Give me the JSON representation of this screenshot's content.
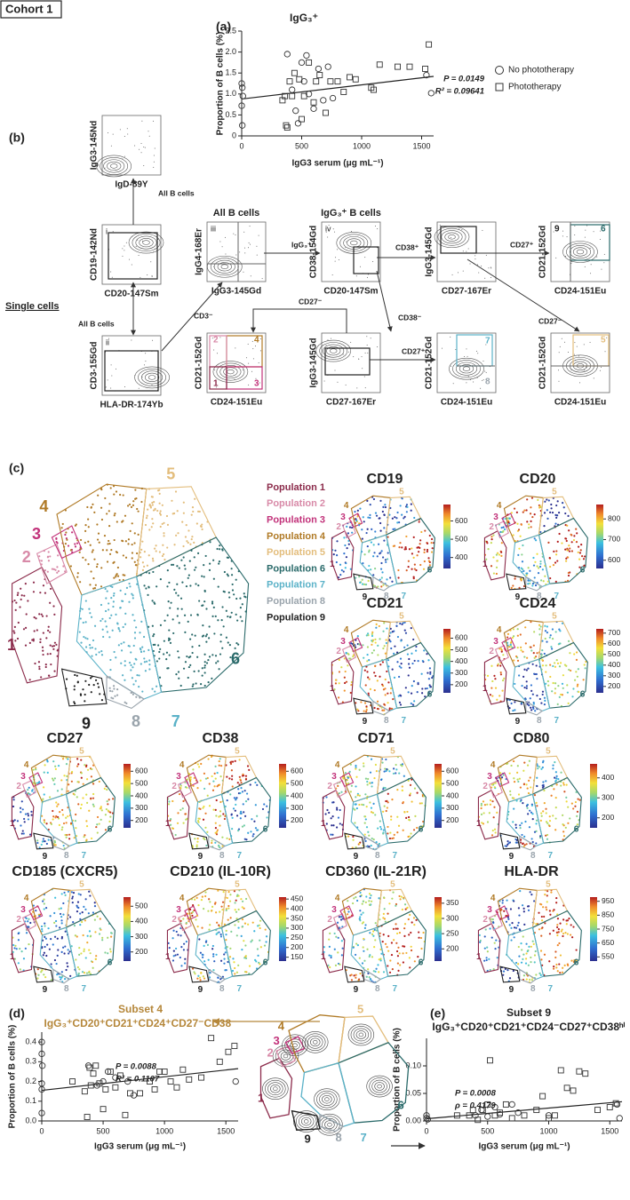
{
  "figure_label": "Cohort 1",
  "gates": [
    "1",
    "2",
    "3",
    "4",
    "5",
    "6",
    "7",
    "8",
    "9"
  ],
  "chart_data": [
    {
      "type": "scatter",
      "panel_label": "(a)",
      "title": "IgG₃⁺",
      "x_label": "IgG3 serum (μg mL⁻¹)",
      "y_label": "Proportion of B cells (%)",
      "xlim": [
        0,
        1600
      ],
      "xticks": [
        0,
        500,
        1000,
        1500
      ],
      "ylim": [
        0,
        2.5
      ],
      "yticks": [
        {
          "value": 0,
          "label": "0"
        },
        {
          "value": 0.5,
          "label": "0.5"
        },
        {
          "value": 1,
          "label": "1.0"
        },
        {
          "value": 1.5,
          "label": "1.5"
        },
        {
          "value": 2,
          "label": "2.0"
        },
        {
          "value": 2.5,
          "label": "2.5"
        }
      ],
      "annotations": [
        "P = 0.0149",
        "R² = 0.09641"
      ],
      "legend": "right",
      "series": [
        {
          "name": "No phototherapy",
          "marker": "circle",
          "color": "#333333",
          "x": [
            0,
            5,
            10,
            0,
            5,
            380,
            420,
            450,
            470,
            500,
            520,
            540,
            560,
            600,
            640,
            680,
            720,
            760,
            1580,
            1540
          ],
          "values": [
            1.25,
            1.15,
            0.95,
            0.72,
            0.25,
            1.95,
            1.1,
            0.6,
            0.3,
            1.75,
            1.3,
            1.92,
            1.0,
            0.65,
            1.6,
            0.85,
            1.65,
            0.9,
            1.02,
            1.45
          ]
        },
        {
          "name": "Phototherapy",
          "marker": "square",
          "color": "#333333",
          "x": [
            340,
            360,
            370,
            380,
            400,
            420,
            440,
            480,
            500,
            520,
            560,
            600,
            620,
            650,
            700,
            740,
            800,
            850,
            900,
            950,
            1080,
            1100,
            1150,
            1300,
            1400,
            1530,
            1560
          ],
          "values": [
            0.85,
            0.95,
            0.25,
            0.2,
            1.3,
            0.95,
            1.5,
            1.35,
            0.4,
            0.95,
            1.75,
            0.8,
            1.3,
            1.45,
            0.55,
            1.3,
            1.3,
            1.05,
            1.4,
            1.35,
            1.15,
            1.1,
            1.7,
            1.65,
            1.65,
            1.6,
            2.18
          ]
        }
      ],
      "trend": {
        "x": [
          0,
          1600
        ],
        "values": [
          0.88,
          1.42
        ]
      }
    },
    {
      "type": "scatter",
      "panel_label": "(d)",
      "title": "Subset 4",
      "subtitle": "IgG₃⁺CD20⁺CD21⁺CD24⁺CD27⁻CD38⁻",
      "title_color": "#b5873a",
      "x_label": "IgG3 serum (μg mL⁻¹)",
      "y_label": "Proportion of B cells (%)",
      "xlim": [
        0,
        1600
      ],
      "xticks": [
        0,
        500,
        1000,
        1500
      ],
      "ylim": [
        0,
        0.45
      ],
      "yticks": [
        {
          "value": 0,
          "label": "0.0"
        },
        {
          "value": 0.1,
          "label": "0.1"
        },
        {
          "value": 0.2,
          "label": "0.2"
        },
        {
          "value": 0.3,
          "label": "0.3"
        },
        {
          "value": 0.4,
          "label": "0.4"
        }
      ],
      "annotations": [
        "P = 0.0088",
        "R² = 0.1107"
      ],
      "series": [
        {
          "marker": "circle",
          "color": "#333333",
          "x": [
            0,
            0,
            0,
            0,
            0,
            5,
            380,
            450,
            500,
            540,
            600,
            700,
            750,
            1580
          ],
          "values": [
            0.4,
            0.34,
            0.19,
            0.16,
            0.04,
            0.28,
            0.28,
            0.18,
            0.2,
            0.25,
            0.22,
            0.2,
            0.13,
            0.2
          ]
        },
        {
          "marker": "square",
          "color": "#333333",
          "x": [
            250,
            350,
            370,
            390,
            400,
            420,
            440,
            470,
            500,
            520,
            560,
            600,
            640,
            680,
            720,
            800,
            880,
            920,
            960,
            1000,
            1050,
            1100,
            1150,
            1200,
            1300,
            1380,
            1450,
            1520,
            1570
          ],
          "values": [
            0.2,
            0.15,
            0.02,
            0.27,
            0.18,
            0.24,
            0.28,
            0.19,
            0.06,
            0.16,
            0.25,
            0.17,
            0.23,
            0.03,
            0.14,
            0.14,
            0.2,
            0.16,
            0.25,
            0.25,
            0.2,
            0.17,
            0.26,
            0.21,
            0.22,
            0.42,
            0.3,
            0.35,
            0.38
          ]
        }
      ],
      "trend": {
        "x": [
          0,
          1600
        ],
        "values": [
          0.155,
          0.265
        ]
      }
    },
    {
      "type": "scatter",
      "panel_label": "(e)",
      "title": "Subset 9",
      "subtitle": "IgG₃⁺CD20⁺CD21⁺CD24⁻CD27⁺CD38ʰⁱ",
      "x_label": "IgG3 serum (μg mL⁻¹)",
      "y_label": "Proportion of B cells (%)",
      "xlim": [
        0,
        1600
      ],
      "xticks": [
        0,
        500,
        1000,
        1500
      ],
      "ylim": [
        0,
        0.15
      ],
      "yticks": [
        {
          "value": 0,
          "label": "0.00"
        },
        {
          "value": 0.05,
          "label": "0.05"
        },
        {
          "value": 0.1,
          "label": "0.10"
        }
      ],
      "annotations": [
        "P = 0.0008",
        "ρ = 0.4179"
      ],
      "series": [
        {
          "marker": "circle",
          "color": "#333333",
          "x": [
            0,
            0,
            10,
            400,
            450,
            500,
            560,
            600,
            700,
            750,
            1000,
            1580,
            1560
          ],
          "values": [
            0.005,
            0.01,
            0.003,
            0.01,
            0.02,
            0.008,
            0.025,
            0.012,
            0.03,
            0.015,
            0.01,
            0.005,
            0.03
          ]
        },
        {
          "marker": "square",
          "color": "#333333",
          "x": [
            250,
            350,
            380,
            420,
            460,
            500,
            520,
            560,
            600,
            650,
            700,
            800,
            900,
            950,
            1000,
            1050,
            1100,
            1150,
            1200,
            1250,
            1300,
            1400,
            1500,
            1550
          ],
          "values": [
            0.01,
            0.01,
            0.02,
            0.002,
            0.02,
            0.03,
            0.11,
            0.01,
            0.015,
            0.03,
            0.005,
            0.01,
            0.02,
            0.045,
            0.005,
            0.01,
            0.092,
            0.06,
            0.055,
            0.09,
            0.086,
            0.02,
            0.025,
            0.032
          ]
        }
      ],
      "trend": {
        "x": [
          0,
          1600
        ],
        "values": [
          0.004,
          0.035
        ]
      }
    }
  ],
  "panel_b": {
    "label": "(b)",
    "single_cells": "Single cells",
    "plots": [
      {
        "y_label": "IgG3-145Nd",
        "x_label": "IgD-89Y"
      },
      {
        "numeral": "i",
        "y_label": "CD19-142Nd",
        "x_label": "CD20-147Sm"
      },
      {
        "numeral": "ii",
        "y_label": "CD3-155Gd",
        "x_label": "HLA-DR-174Yb"
      },
      {
        "numeral": "iii",
        "title": "All B cells",
        "y_label": "IgG4-168Er",
        "x_label": "IgG3-145Gd"
      },
      {
        "numeral": "iv",
        "title": "IgG₃⁺ B cells",
        "y_label": "CD38-154Gd",
        "x_label": "CD20-147Sm"
      },
      {
        "y_label": "IgG3-145Gd",
        "x_label": "CD27-167Er"
      },
      {
        "y_label": "CD21-152Gd",
        "x_label": "CD24-151Eu"
      },
      {
        "y_label": "CD21-152Gd",
        "x_label": "CD24-151Eu"
      },
      {
        "y_label": "IgG3-145Gd",
        "x_label": "CD27-167Er"
      },
      {
        "y_label": "CD21-152Gd",
        "x_label": "CD24-151Eu"
      },
      {
        "y_label": "CD21-152Gd",
        "x_label": "CD24-151Eu"
      }
    ],
    "arrow_labels": [
      "All B cells",
      "All B cells",
      "CD3⁻",
      "IgG₃⁺",
      "CD38⁺",
      "CD27⁺",
      "CD38⁻",
      "CD27⁻",
      "CD27⁺",
      "CD27⁻"
    ]
  },
  "panel_c": {
    "label": "(c)",
    "populations": [
      {
        "name": "Population 1",
        "color": "#8b2a4a"
      },
      {
        "name": "Population 2",
        "color": "#d88aa8"
      },
      {
        "name": "Population 3",
        "color": "#c2327a"
      },
      {
        "name": "Population 4",
        "color": "#b07a26"
      },
      {
        "name": "Population 5",
        "color": "#e3bd7c"
      },
      {
        "name": "Population 6",
        "color": "#2a6a6a"
      },
      {
        "name": "Population 7",
        "color": "#5bb2c8"
      },
      {
        "name": "Population 8",
        "color": "#9aa4ac"
      },
      {
        "name": "Population 9",
        "color": "#222222"
      }
    ],
    "heatmaps": [
      {
        "title": "CD19",
        "clim": [
          340,
          690
        ],
        "ticks": [
          400,
          500,
          600
        ]
      },
      {
        "title": "CD20",
        "clim": [
          560,
          870
        ],
        "ticks": [
          600,
          700,
          800
        ]
      },
      {
        "title": "CD21",
        "clim": [
          130,
          680
        ],
        "ticks": [
          200,
          300,
          400,
          500,
          600
        ]
      },
      {
        "title": "CD24",
        "clim": [
          140,
          740
        ],
        "ticks": [
          200,
          300,
          400,
          500,
          600,
          700
        ]
      },
      {
        "title": "CD27",
        "clim": [
          140,
          660
        ],
        "ticks": [
          200,
          300,
          400,
          500,
          600
        ]
      },
      {
        "title": "CD38",
        "clim": [
          140,
          660
        ],
        "ticks": [
          200,
          300,
          400,
          500,
          600
        ]
      },
      {
        "title": "CD71",
        "clim": [
          140,
          660
        ],
        "ticks": [
          200,
          300,
          400,
          500,
          600
        ]
      },
      {
        "title": "CD80",
        "clim": [
          150,
          470
        ],
        "ticks": [
          200,
          300,
          400
        ]
      },
      {
        "title": "CD185 (CXCR5)",
        "clim": [
          140,
          560
        ],
        "ticks": [
          200,
          300,
          400,
          500
        ]
      },
      {
        "title": "CD210 (IL-10R)",
        "clim": [
          130,
          460
        ],
        "ticks": [
          150,
          200,
          250,
          300,
          350,
          400,
          450
        ]
      },
      {
        "title": "CD360 (IL-21R)",
        "clim": [
          160,
          370
        ],
        "ticks": [
          200,
          250,
          300,
          350
        ]
      },
      {
        "title": "HLA-DR",
        "clim": [
          520,
          980
        ],
        "ticks": [
          550,
          650,
          750,
          850,
          950
        ]
      }
    ]
  }
}
